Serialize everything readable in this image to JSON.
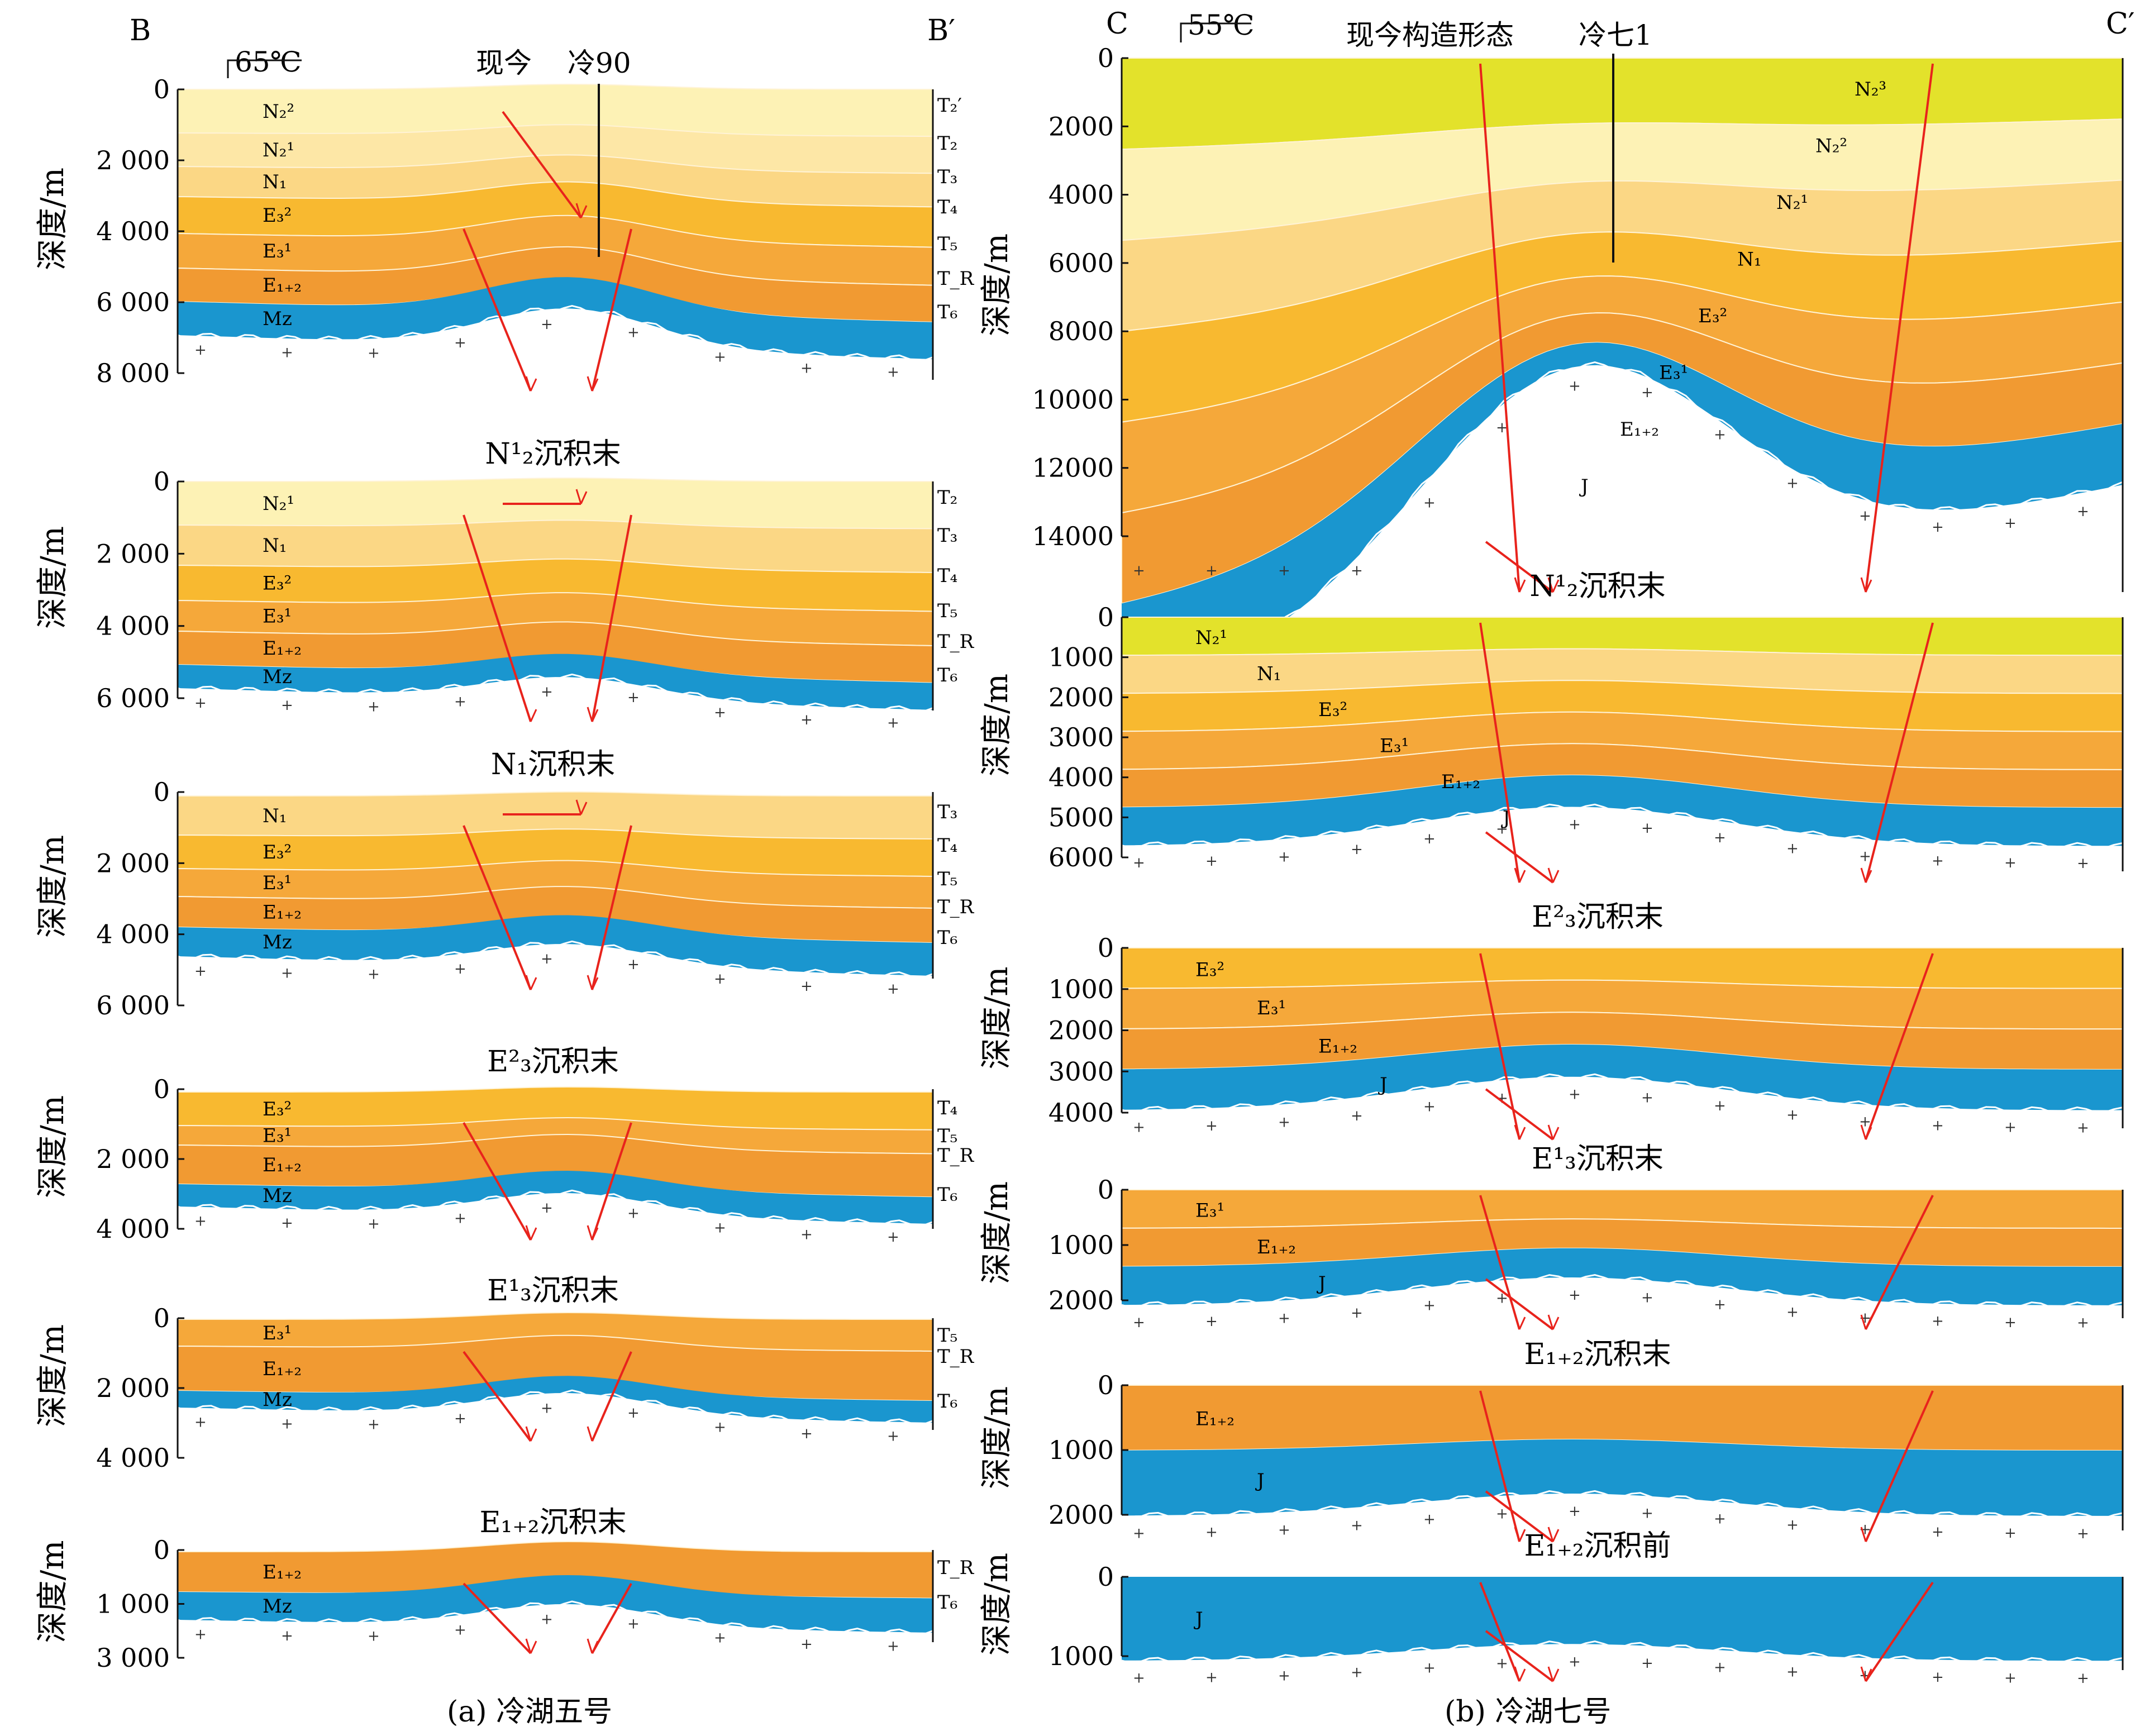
{
  "captions": {
    "left": "(a) 冷湖五号",
    "right": "(b) 冷湖七号"
  },
  "left": {
    "corner_left": "B",
    "corner_right": "B′",
    "temp": "65℃",
    "header_now": "现今",
    "header_well": "冷90",
    "y_axis_title": "深度/m",
    "right_markers": [
      "T₂′",
      "T₂",
      "T₃",
      "T₄",
      "T₅",
      "T_R",
      "T₆"
    ],
    "panels": [
      {
        "title": "",
        "ticks": [
          "0",
          "2 000",
          "4 000",
          "6 000",
          "8 000"
        ],
        "units": [
          "N₂²",
          "N₂¹",
          "N₁",
          "E₃²",
          "E₃¹",
          "E₁₊₂",
          "Mz"
        ],
        "markers": [
          "T₂′",
          "T₂",
          "T₃",
          "T₄",
          "T₅",
          "T_R",
          "T₆"
        ]
      },
      {
        "title": "N¹₂沉积末",
        "ticks": [
          "0",
          "2 000",
          "4 000",
          "6 000"
        ],
        "units": [
          "N₂¹",
          "N₁",
          "E₃²",
          "E₃¹",
          "E₁₊₂",
          "Mz"
        ],
        "markers": [
          "T₂",
          "T₃",
          "T₄",
          "T₅",
          "T_R",
          "T₆"
        ]
      },
      {
        "title": "N₁沉积末",
        "ticks": [
          "0",
          "2 000",
          "4 000",
          "6 000"
        ],
        "units": [
          "N₁",
          "E₃²",
          "E₃¹",
          "E₁₊₂",
          "Mz"
        ],
        "markers": [
          "T₃",
          "T₄",
          "T₅",
          "T_R",
          "T₆"
        ]
      },
      {
        "title": "E²₃沉积末",
        "ticks": [
          "0",
          "2 000",
          "4 000"
        ],
        "units": [
          "E₃²",
          "E₃¹",
          "E₁₊₂",
          "Mz"
        ],
        "markers": [
          "T₄",
          "T₅",
          "T_R",
          "T₆"
        ]
      },
      {
        "title": "E¹₃沉积末",
        "ticks": [
          "0",
          "2 000",
          "4 000"
        ],
        "units": [
          "E₃¹",
          "E₁₊₂",
          "Mz"
        ],
        "markers": [
          "T₅",
          "T_R",
          "T₆"
        ]
      },
      {
        "title": "E₁₊₂沉积末",
        "ticks": [
          "0",
          "1 000",
          "3 000"
        ],
        "units": [
          "E₁₊₂",
          "Mz"
        ],
        "markers": [
          "T_R",
          "T₆"
        ]
      }
    ]
  },
  "right": {
    "corner_left": "C",
    "corner_right": "C′",
    "temp": "55℃",
    "header_now": "现今构造形态",
    "header_well": "冷七1",
    "y_axis_title": "深度/m",
    "panels": [
      {
        "title": "",
        "ticks": [
          "0",
          "2000",
          "4000",
          "6000",
          "8000",
          "10000",
          "12000",
          "14000"
        ],
        "units": [
          "N₂³",
          "N₂²",
          "N₂¹",
          "N₁",
          "E₃²",
          "E₃¹",
          "E₁₊₂",
          "J"
        ]
      },
      {
        "title": "N¹₂沉积末",
        "ticks": [
          "0",
          "1000",
          "2000",
          "3000",
          "4000",
          "5000",
          "6000"
        ],
        "units": [
          "N₂¹",
          "N₁",
          "E₃²",
          "E₃¹",
          "E₁₊₂",
          "J"
        ]
      },
      {
        "title": "E²₃沉积末",
        "ticks": [
          "0",
          "1000",
          "2000",
          "3000",
          "4000"
        ],
        "units": [
          "E₃²",
          "E₃¹",
          "E₁₊₂",
          "J"
        ]
      },
      {
        "title": "E¹₃沉积末",
        "ticks": [
          "0",
          "1000",
          "2000"
        ],
        "units": [
          "E₃¹",
          "E₁₊₂",
          "J"
        ]
      },
      {
        "title": "E₁₊₂沉积末",
        "ticks": [
          "0",
          "1000",
          "2000"
        ],
        "units": [
          "E₁₊₂",
          "J"
        ]
      },
      {
        "title": "E₁₊₂沉积前",
        "ticks": [
          "0",
          "1000"
        ],
        "units": [
          "J"
        ]
      }
    ]
  },
  "colors": {
    "N2_3": "#e3e22b",
    "N2_2": "#fdf2b5",
    "N2_1": "#fde7a6",
    "N1": "#fbd785",
    "E3_2": "#f8b930",
    "E3_1": "#f5a83a",
    "E12": "#f19a32",
    "basement": "#1a96cf",
    "fault": "#e8231c"
  }
}
